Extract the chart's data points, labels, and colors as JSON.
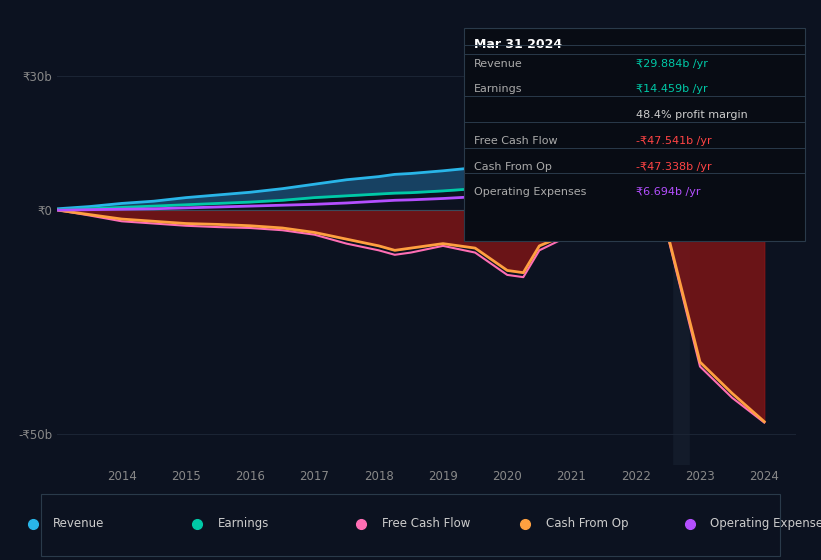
{
  "bg_color": "#0c1220",
  "plot_bg_color": "#0c1220",
  "grid_color": "#1c2535",
  "years": [
    2013,
    2013.5,
    2014,
    2014.5,
    2015,
    2015.5,
    2016,
    2016.5,
    2017,
    2017.5,
    2018,
    2018.25,
    2018.5,
    2019,
    2019.5,
    2020,
    2020.25,
    2020.5,
    2021,
    2021.25,
    2021.5,
    2022,
    2022.5,
    2023,
    2023.5,
    2024
  ],
  "revenue": [
    0.3,
    0.8,
    1.5,
    2.0,
    2.8,
    3.4,
    4.0,
    4.8,
    5.8,
    6.8,
    7.5,
    8.0,
    8.2,
    8.8,
    9.5,
    10.2,
    10.5,
    10.0,
    9.5,
    10.0,
    11.0,
    13.0,
    16.0,
    20.0,
    25.0,
    29.884
  ],
  "earnings": [
    0.1,
    0.3,
    0.6,
    0.9,
    1.2,
    1.5,
    1.8,
    2.2,
    2.8,
    3.2,
    3.6,
    3.8,
    3.9,
    4.3,
    4.8,
    5.2,
    5.3,
    5.0,
    4.8,
    5.2,
    5.8,
    7.0,
    9.0,
    11.0,
    13.0,
    14.459
  ],
  "cash_from_op": [
    0.0,
    -1.0,
    -2.0,
    -2.5,
    -3.0,
    -3.2,
    -3.5,
    -4.0,
    -5.0,
    -6.5,
    -8.0,
    -9.0,
    -8.5,
    -7.5,
    -8.5,
    -13.5,
    -14.0,
    -8.0,
    -5.0,
    -4.5,
    -4.5,
    -5.0,
    -5.5,
    -34.0,
    -41.0,
    -47.338
  ],
  "free_cash_flow": [
    0.0,
    -1.2,
    -2.5,
    -3.0,
    -3.5,
    -3.8,
    -4.0,
    -4.5,
    -5.5,
    -7.5,
    -9.0,
    -10.0,
    -9.5,
    -8.0,
    -9.5,
    -14.5,
    -15.0,
    -9.0,
    -5.5,
    -5.0,
    -5.0,
    -5.5,
    -6.0,
    -35.0,
    -42.0,
    -47.541
  ],
  "op_expenses": [
    0.0,
    0.1,
    0.2,
    0.3,
    0.5,
    0.7,
    0.9,
    1.1,
    1.3,
    1.6,
    2.0,
    2.2,
    2.3,
    2.6,
    3.0,
    3.5,
    3.6,
    3.8,
    4.0,
    4.2,
    4.4,
    4.8,
    5.2,
    5.8,
    6.3,
    6.694
  ],
  "ylim": [
    -57,
    37
  ],
  "ytick_positions": [
    -50,
    0,
    30
  ],
  "ytick_labels": [
    "-₹50b",
    "₹0",
    "₹30b"
  ],
  "xlim": [
    2013.0,
    2024.5
  ],
  "xtick_positions": [
    2014,
    2015,
    2016,
    2017,
    2018,
    2019,
    2020,
    2021,
    2022,
    2023,
    2024
  ],
  "revenue_color": "#29b5e8",
  "earnings_color": "#00c9a7",
  "fcf_color": "#ff6eb4",
  "cop_color": "#ffa040",
  "opex_color": "#b44fff",
  "fill_rev_earn_color": "#1a4a6e",
  "fill_rev_earn_alpha": 0.85,
  "fill_neg_color": "#8b1515",
  "fill_neg_alpha": 0.75,
  "tooltip_title": "Mar 31 2024",
  "tooltip_revenue_label": "Revenue",
  "tooltip_revenue_val": "₹29.884b /yr",
  "tooltip_revenue_color": "#00c9a7",
  "tooltip_earnings_label": "Earnings",
  "tooltip_earnings_val": "₹14.459b /yr",
  "tooltip_earnings_color": "#00c9a7",
  "tooltip_margin_val": "48.4% profit margin",
  "tooltip_margin_color": "#cccccc",
  "tooltip_fcf_label": "Free Cash Flow",
  "tooltip_fcf_val": "-₹47.541b /yr",
  "tooltip_fcf_color": "#ff4444",
  "tooltip_cop_label": "Cash From Op",
  "tooltip_cop_val": "-₹47.338b /yr",
  "tooltip_cop_color": "#ff4444",
  "tooltip_opex_label": "Operating Expenses",
  "tooltip_opex_val": "₹6.694b /yr",
  "tooltip_opex_color": "#b44fff",
  "legend_labels": [
    "Revenue",
    "Earnings",
    "Free Cash Flow",
    "Cash From Op",
    "Operating Expenses"
  ],
  "legend_colors": [
    "#29b5e8",
    "#00c9a7",
    "#ff6eb4",
    "#ffa040",
    "#b44fff"
  ]
}
